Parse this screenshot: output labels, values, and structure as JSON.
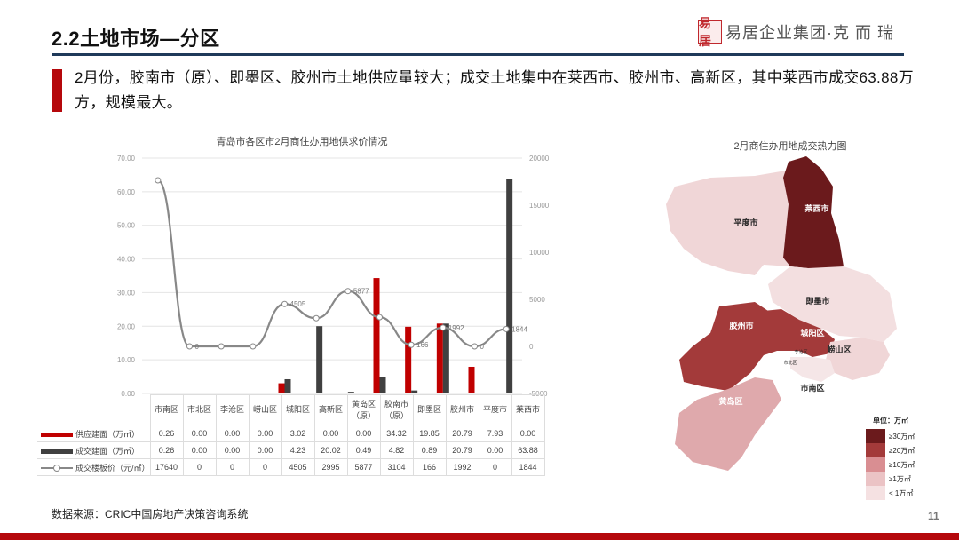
{
  "header": {
    "title": "2.2土地市场—分区",
    "brand_seal": "易居",
    "brand_text": "易居企业集团·克 而 瑞"
  },
  "lead_text": "2月份，胶南市（原）、即墨区、胶州市土地供应量较大；成交土地集中在莱西市、胶州市、高新区，其中莱西市成交63.88万方，规模最大。",
  "chart_data": {
    "type": "bar",
    "title": "青岛市各区市2月商住办用地供求价情况",
    "categories": [
      "市南区",
      "市北区",
      "李沧区",
      "崂山区",
      "城阳区",
      "高新区",
      "黄岛区（原）",
      "胶南市（原）",
      "即墨区",
      "胶州市",
      "平度市",
      "莱西市"
    ],
    "series": [
      {
        "name": "供应建面（万㎡）",
        "type": "bar",
        "axis": "left",
        "color": "#c00000",
        "values": [
          0.26,
          0.0,
          0.0,
          0.0,
          3.02,
          0.0,
          0.0,
          34.32,
          19.85,
          20.79,
          7.93,
          0.0
        ]
      },
      {
        "name": "成交建面（万㎡）",
        "type": "bar",
        "axis": "left",
        "color": "#404040",
        "values": [
          0.26,
          0.0,
          0.0,
          0.0,
          4.23,
          20.02,
          0.49,
          4.82,
          0.89,
          20.79,
          0.0,
          63.88
        ]
      },
      {
        "name": "成交楼板价（元/㎡）",
        "type": "line",
        "axis": "right",
        "color": "#888888",
        "values": [
          17640,
          0,
          0,
          0,
          4505,
          2995,
          5877,
          3104,
          166,
          1992,
          0,
          1844
        ]
      }
    ],
    "ylim_left": [
      0,
      70
    ],
    "yticks_left": [
      "0.00",
      "10.00",
      "20.00",
      "30.00",
      "40.00",
      "50.00",
      "60.00",
      "70.00"
    ],
    "ylim_right": [
      -5000,
      20000
    ],
    "yticks_right": [
      "-5000",
      "0",
      "5000",
      "10000",
      "15000",
      "20000"
    ],
    "point_labels": {
      "1": "0",
      "4": "4505",
      "6": "5877",
      "8": "166",
      "9": "1992",
      "10": "0",
      "11": "1844"
    },
    "grid": true,
    "legend_position": "table-left"
  },
  "table": {
    "headers": [
      "市南区",
      "市北区",
      "李沧区",
      "崂山区",
      "城阳区",
      "高新区",
      "黄岛区\n（原）",
      "胶南市\n（原）",
      "即墨区",
      "胶州市",
      "平度市",
      "莱西市"
    ],
    "rows": [
      {
        "label": "供应建面（万㎡）",
        "cells": [
          "0.26",
          "0.00",
          "0.00",
          "0.00",
          "3.02",
          "0.00",
          "0.00",
          "34.32",
          "19.85",
          "20.79",
          "7.93",
          "0.00"
        ]
      },
      {
        "label": "成交建面（万㎡）",
        "cells": [
          "0.26",
          "0.00",
          "0.00",
          "0.00",
          "4.23",
          "20.02",
          "0.49",
          "4.82",
          "0.89",
          "20.79",
          "0.00",
          "63.88"
        ]
      },
      {
        "label": "成交楼板价（元/㎡）",
        "cells": [
          "17640",
          "0",
          "0",
          "0",
          "4505",
          "2995",
          "5877",
          "3104",
          "166",
          "1992",
          "0",
          "1844"
        ]
      }
    ]
  },
  "map": {
    "title": "2月商住办用地成交热力图",
    "labels": {
      "laixi": "莱西市",
      "pingdu": "平度市",
      "jimo": "即墨市",
      "jiaozhou": "胶州市",
      "chengyang": "城阳区",
      "laoshan": "崂山区",
      "licang": "李沧区",
      "shibei": "市北区",
      "shinan": "市南区",
      "huangdao": "黄岛区"
    },
    "legend_unit": "单位：万㎡",
    "legend": [
      {
        "label": "≥30万㎡",
        "color": "#6b1a1c"
      },
      {
        "label": "≥20万㎡",
        "color": "#a33a3a"
      },
      {
        "label": "≥10万㎡",
        "color": "#d98e92"
      },
      {
        "label": "≥1万㎡",
        "color": "#ebc3c5"
      },
      {
        "label": "< 1万㎡",
        "color": "#f5e1e2"
      }
    ]
  },
  "footer": {
    "source": "数据来源：CRIC中国房地产决策咨询系统",
    "page": "11"
  }
}
